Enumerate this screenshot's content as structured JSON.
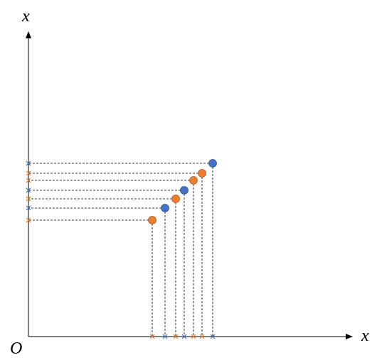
{
  "axes": {
    "y_label": "x",
    "x_label": "x",
    "origin": "O"
  }
}
